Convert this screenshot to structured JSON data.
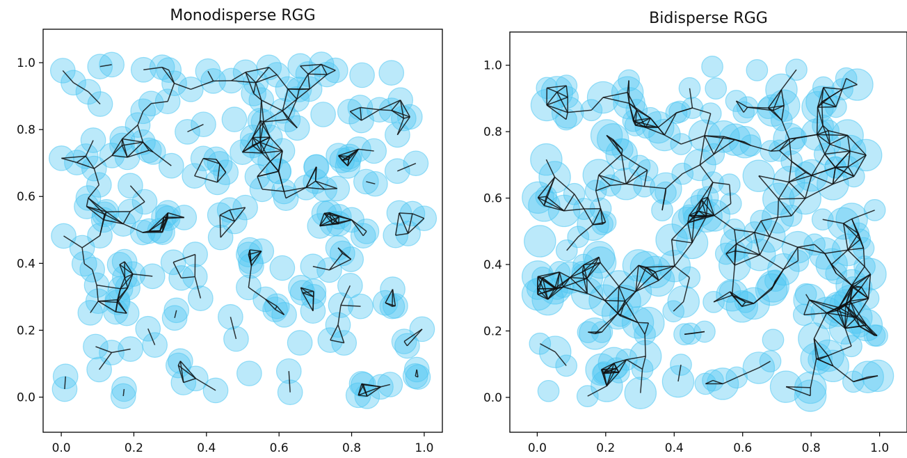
{
  "chart_data": [
    {
      "type": "scatter",
      "title": "Monodisperse RGG",
      "xlim": [
        -0.05,
        1.05
      ],
      "ylim": [
        -0.105,
        1.1
      ],
      "xticks": [
        "0.0",
        "0.2",
        "0.4",
        "0.6",
        "0.8",
        "1.0"
      ],
      "yticks": [
        "0.0",
        "0.2",
        "0.4",
        "0.6",
        "0.8",
        "1.0"
      ],
      "node_color": "#4cc6f2",
      "edge_color": "#111111",
      "seed": 7
    },
    {
      "type": "scatter",
      "title": "Bidisperse RGG",
      "xlim": [
        -0.08,
        1.08
      ],
      "ylim": [
        -0.105,
        1.1
      ],
      "xticks": [
        "0.0",
        "0.2",
        "0.4",
        "0.6",
        "0.8",
        "1.0"
      ],
      "yticks": [
        "0.0",
        "0.2",
        "0.4",
        "0.6",
        "0.8",
        "1.0"
      ],
      "node_color": "#4cc6f2",
      "edge_color": "#111111",
      "seed": 19
    }
  ]
}
